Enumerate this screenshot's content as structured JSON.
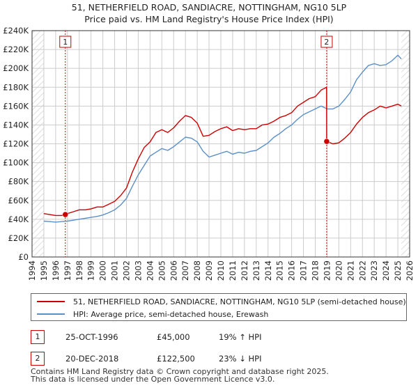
{
  "chart_data": {
    "type": "line",
    "title": "51, NETHERFIELD ROAD, SANDIACRE, NOTTINGHAM, NG10 5LP",
    "subtitle": "Price paid vs. HM Land Registry's House Price Index (HPI)",
    "xlim": [
      1994.0,
      2026.0
    ],
    "ylim": [
      0,
      240000
    ],
    "x_ticks": [
      1994,
      1995,
      1996,
      1997,
      1998,
      1999,
      2000,
      2001,
      2002,
      2003,
      2004,
      2005,
      2006,
      2007,
      2008,
      2009,
      2010,
      2011,
      2012,
      2013,
      2014,
      2015,
      2016,
      2017,
      2018,
      2019,
      2020,
      2021,
      2022,
      2023,
      2024,
      2025,
      2026
    ],
    "y_ticks": [
      0,
      20000,
      40000,
      60000,
      80000,
      100000,
      120000,
      140000,
      160000,
      180000,
      200000,
      220000,
      240000
    ],
    "y_tick_labels": [
      "£0",
      "£20K",
      "£40K",
      "£60K",
      "£80K",
      "£100K",
      "£120K",
      "£140K",
      "£160K",
      "£180K",
      "£200K",
      "£220K",
      "£240K"
    ],
    "grid": true,
    "data_range": [
      1995.0,
      2025.3
    ],
    "series": [
      {
        "name": "51, NETHERFIELD ROAD, SANDIACRE, NOTTINGHAM, NG10 5LP (semi-detached house)",
        "color": "#cc0000",
        "x": [
          1995.0,
          1995.5,
          1996.0,
          1996.5,
          1996.82,
          1997.0,
          1997.5,
          1998.0,
          1998.5,
          1999.0,
          1999.5,
          2000.0,
          2000.5,
          2001.0,
          2001.5,
          2002.0,
          2002.5,
          2003.0,
          2003.5,
          2004.0,
          2004.5,
          2005.0,
          2005.5,
          2006.0,
          2006.5,
          2007.0,
          2007.5,
          2008.0,
          2008.5,
          2009.0,
          2009.5,
          2010.0,
          2010.5,
          2011.0,
          2011.5,
          2012.0,
          2012.5,
          2013.0,
          2013.5,
          2014.0,
          2014.5,
          2015.0,
          2015.5,
          2016.0,
          2016.5,
          2017.0,
          2017.5,
          2018.0,
          2018.5,
          2018.96,
          2018.97,
          2019.0,
          2019.5,
          2020.0,
          2020.5,
          2021.0,
          2021.5,
          2022.0,
          2022.5,
          2023.0,
          2023.5,
          2024.0,
          2024.5,
          2025.0,
          2025.3
        ],
        "values": [
          46000,
          45000,
          44000,
          44000,
          45000,
          46000,
          48000,
          50000,
          50000,
          51000,
          53000,
          53000,
          56000,
          59000,
          65000,
          73000,
          90000,
          104000,
          116000,
          122000,
          132000,
          135000,
          132000,
          137000,
          144000,
          150000,
          148000,
          142000,
          128000,
          129000,
          133000,
          136000,
          138000,
          134000,
          136000,
          135000,
          136000,
          136000,
          140000,
          141000,
          144000,
          148000,
          150000,
          153000,
          160000,
          164000,
          168000,
          170000,
          177000,
          180000,
          122500,
          122500,
          120000,
          121000,
          126000,
          132000,
          141000,
          148000,
          153000,
          156000,
          160000,
          158000,
          160000,
          162000,
          160000
        ]
      },
      {
        "name": "HPI: Average price, semi-detached house, Erewash",
        "color": "#5b8fc8",
        "x": [
          1995.0,
          1995.5,
          1996.0,
          1996.5,
          1997.0,
          1997.5,
          1998.0,
          1998.5,
          1999.0,
          1999.5,
          2000.0,
          2000.5,
          2001.0,
          2001.5,
          2002.0,
          2002.5,
          2003.0,
          2003.5,
          2004.0,
          2004.5,
          2005.0,
          2005.5,
          2006.0,
          2006.5,
          2007.0,
          2007.5,
          2008.0,
          2008.5,
          2009.0,
          2009.5,
          2010.0,
          2010.5,
          2011.0,
          2011.5,
          2012.0,
          2012.5,
          2013.0,
          2013.5,
          2014.0,
          2014.5,
          2015.0,
          2015.5,
          2016.0,
          2016.5,
          2017.0,
          2017.5,
          2018.0,
          2018.5,
          2019.0,
          2019.5,
          2020.0,
          2020.5,
          2021.0,
          2021.5,
          2022.0,
          2022.5,
          2023.0,
          2023.5,
          2024.0,
          2024.5,
          2025.0,
          2025.3
        ],
        "values": [
          38000,
          37500,
          37000,
          37500,
          38000,
          39000,
          40000,
          41000,
          42000,
          43000,
          44500,
          47000,
          50000,
          55000,
          62000,
          75000,
          87000,
          97000,
          107000,
          111000,
          115000,
          113000,
          117000,
          122000,
          127000,
          126000,
          122000,
          112000,
          106000,
          108000,
          110000,
          112000,
          109000,
          111000,
          110000,
          112000,
          113000,
          117000,
          121000,
          127000,
          131000,
          136000,
          140000,
          146000,
          151000,
          154000,
          157000,
          160000,
          157000,
          157000,
          160000,
          167000,
          175000,
          188000,
          196000,
          203000,
          205000,
          203000,
          204000,
          208000,
          214000,
          210000
        ]
      }
    ],
    "annotations": [
      {
        "label": "1",
        "x": 1996.82,
        "value": 45000
      },
      {
        "label": "2",
        "x": 2018.97,
        "value": 122500
      }
    ]
  },
  "legend": {
    "series1": "51, NETHERFIELD ROAD, SANDIACRE, NOTTINGHAM, NG10 5LP (semi-detached house)",
    "series2": "HPI: Average price, semi-detached house, Erewash"
  },
  "sales": [
    {
      "num": "1",
      "date": "25-OCT-1996",
      "price": "£45,000",
      "hpi": "19% ↑ HPI"
    },
    {
      "num": "2",
      "date": "20-DEC-2018",
      "price": "£122,500",
      "hpi": "23% ↓ HPI"
    }
  ],
  "footer": {
    "line1": "Contains HM Land Registry data © Crown copyright and database right 2025.",
    "line2": "This data is licensed under the Open Government Licence v3.0."
  },
  "colors": {
    "sale_line": "#cc0000",
    "hpi_line": "#5b8fc8",
    "grid": "#cccccc",
    "hatch": "#dddddd",
    "plot_bg": "#ffffff",
    "axis": "#333333"
  }
}
